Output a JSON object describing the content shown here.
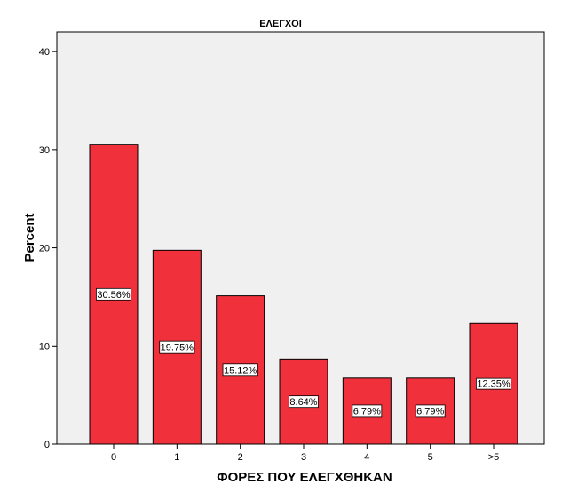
{
  "chart_data": {
    "type": "bar",
    "title": "ΕΛΕΓΧΟΙ",
    "xlabel": "ΦΟΡΕΣ ΠΟΥ ΕΛΕΓΧΘΗΚΑΝ",
    "ylabel": "Percent",
    "categories": [
      "0",
      "1",
      "2",
      "3",
      "4",
      "5",
      ">5"
    ],
    "values": [
      30.56,
      19.75,
      15.12,
      8.64,
      6.79,
      6.79,
      12.35
    ],
    "data_labels": [
      "30.56%",
      "19.75%",
      "15.12%",
      "8.64%",
      "6.79%",
      "6.79%",
      "12.35%"
    ],
    "ylim": [
      0,
      42
    ],
    "yticks": [
      0,
      10,
      20,
      30,
      40
    ],
    "grid": false,
    "legend": "none",
    "colors": {
      "bar_fill": "#f0313c",
      "bar_stroke": "#000000",
      "plot_background": "#f0f0f0",
      "label_box": "#ffffff"
    }
  }
}
